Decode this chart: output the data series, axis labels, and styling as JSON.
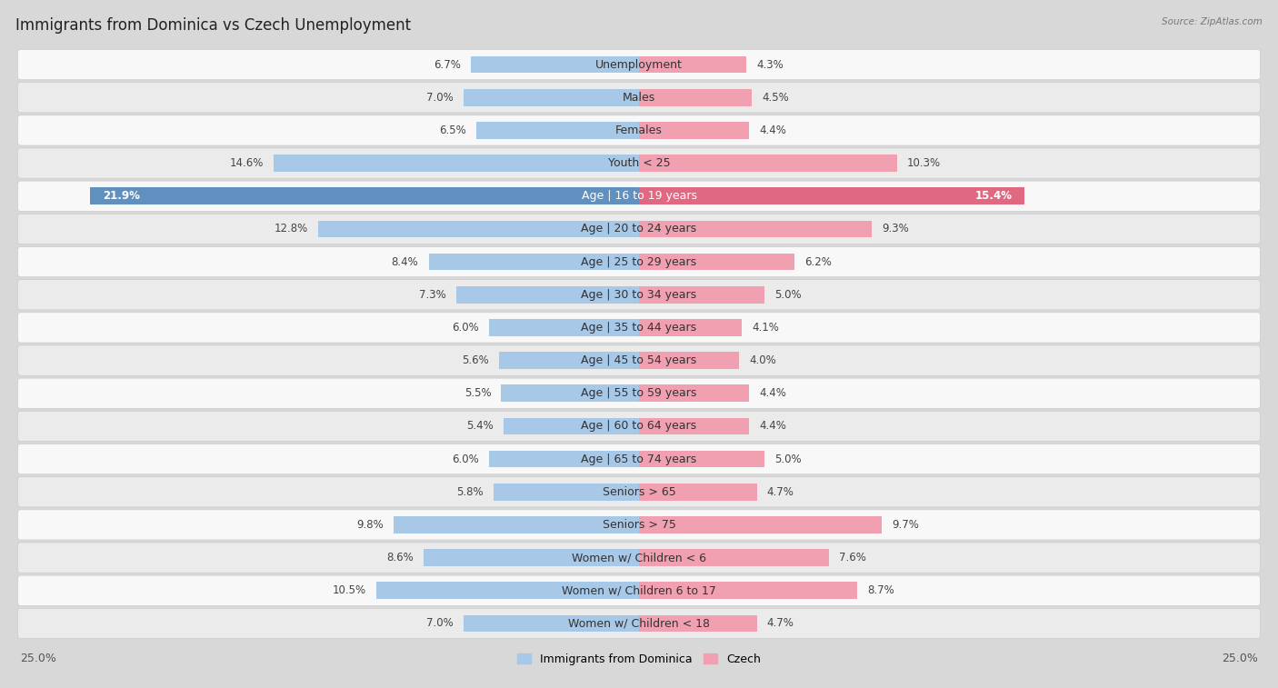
{
  "title": "Immigrants from Dominica vs Czech Unemployment",
  "source": "Source: ZipAtlas.com",
  "categories": [
    "Unemployment",
    "Males",
    "Females",
    "Youth < 25",
    "Age | 16 to 19 years",
    "Age | 20 to 24 years",
    "Age | 25 to 29 years",
    "Age | 30 to 34 years",
    "Age | 35 to 44 years",
    "Age | 45 to 54 years",
    "Age | 55 to 59 years",
    "Age | 60 to 64 years",
    "Age | 65 to 74 years",
    "Seniors > 65",
    "Seniors > 75",
    "Women w/ Children < 6",
    "Women w/ Children 6 to 17",
    "Women w/ Children < 18"
  ],
  "left_values": [
    6.7,
    7.0,
    6.5,
    14.6,
    21.9,
    12.8,
    8.4,
    7.3,
    6.0,
    5.6,
    5.5,
    5.4,
    6.0,
    5.8,
    9.8,
    8.6,
    10.5,
    7.0
  ],
  "right_values": [
    4.3,
    4.5,
    4.4,
    10.3,
    15.4,
    9.3,
    6.2,
    5.0,
    4.1,
    4.0,
    4.4,
    4.4,
    5.0,
    4.7,
    9.7,
    7.6,
    8.7,
    4.7
  ],
  "left_color": "#a8c8e8",
  "right_color": "#f0a0b0",
  "highlight_left_color": "#6090c0",
  "highlight_right_color": "#e06880",
  "left_label": "Immigrants from Dominica",
  "right_label": "Czech",
  "axis_limit": 25.0,
  "page_bg_color": "#d8d8d8",
  "row_light_color": "#f8f8f8",
  "row_dark_color": "#ebebeb",
  "title_fontsize": 12,
  "label_fontsize": 9,
  "value_fontsize": 8.5,
  "highlight_row": 4
}
